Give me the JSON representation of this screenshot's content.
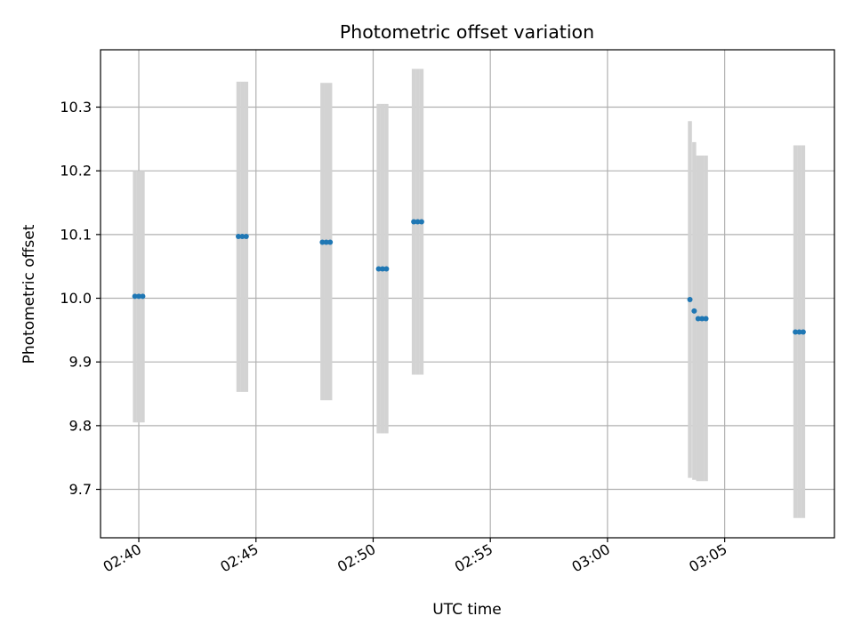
{
  "chart_data": {
    "type": "scatter",
    "title": "Photometric offset variation",
    "xlabel": "UTC time",
    "ylabel": "Photometric offset",
    "x_tick_labels": [
      "02:40",
      "02:45",
      "02:50",
      "02:55",
      "03:00",
      "03:05"
    ],
    "x_ticks": [
      "02:40",
      "02:45",
      "02:50",
      "02:55",
      "03:00",
      "03:05"
    ],
    "y_tick_labels": [
      "9.7",
      "9.8",
      "9.9",
      "10.0",
      "10.1",
      "10.2",
      "10.3"
    ],
    "y_ticks": [
      9.7,
      9.8,
      9.9,
      10.0,
      10.1,
      10.2,
      10.3
    ],
    "xlim": [
      "02:38:22",
      "03:09:41"
    ],
    "ylim": [
      9.624,
      10.39
    ],
    "grid": true,
    "errorbar_color": "#d3d3d3",
    "point_color": "#1f77b4",
    "series": [
      {
        "points": [
          {
            "x": "02:39:50",
            "y": 10.003,
            "ylow": 9.805,
            "yhigh": 10.2
          },
          {
            "x": "02:40:00",
            "y": 10.003,
            "ylow": 9.805,
            "yhigh": 10.2
          },
          {
            "x": "02:40:10",
            "y": 10.003,
            "ylow": 9.805,
            "yhigh": 10.2
          },
          {
            "x": "02:44:15",
            "y": 10.097,
            "ylow": 9.853,
            "yhigh": 10.34
          },
          {
            "x": "02:44:25",
            "y": 10.097,
            "ylow": 9.853,
            "yhigh": 10.34
          },
          {
            "x": "02:44:35",
            "y": 10.097,
            "ylow": 9.853,
            "yhigh": 10.34
          },
          {
            "x": "02:47:50",
            "y": 10.088,
            "ylow": 9.84,
            "yhigh": 10.338
          },
          {
            "x": "02:48:00",
            "y": 10.088,
            "ylow": 9.84,
            "yhigh": 10.338
          },
          {
            "x": "02:48:10",
            "y": 10.088,
            "ylow": 9.84,
            "yhigh": 10.338
          },
          {
            "x": "02:50:14",
            "y": 10.046,
            "ylow": 9.788,
            "yhigh": 10.305
          },
          {
            "x": "02:50:24",
            "y": 10.046,
            "ylow": 9.788,
            "yhigh": 10.305
          },
          {
            "x": "02:50:34",
            "y": 10.046,
            "ylow": 9.788,
            "yhigh": 10.305
          },
          {
            "x": "02:51:44",
            "y": 10.12,
            "ylow": 9.88,
            "yhigh": 10.36
          },
          {
            "x": "02:51:54",
            "y": 10.12,
            "ylow": 9.88,
            "yhigh": 10.36
          },
          {
            "x": "02:52:04",
            "y": 10.12,
            "ylow": 9.88,
            "yhigh": 10.36
          },
          {
            "x": "03:03:31",
            "y": 9.998,
            "ylow": 9.718,
            "yhigh": 10.278
          },
          {
            "x": "03:03:42",
            "y": 9.98,
            "ylow": 9.715,
            "yhigh": 10.245
          },
          {
            "x": "03:03:52",
            "y": 9.968,
            "ylow": 9.713,
            "yhigh": 10.224
          },
          {
            "x": "03:04:02",
            "y": 9.968,
            "ylow": 9.713,
            "yhigh": 10.224
          },
          {
            "x": "03:04:12",
            "y": 9.968,
            "ylow": 9.713,
            "yhigh": 10.224
          },
          {
            "x": "03:08:01",
            "y": 9.947,
            "ylow": 9.655,
            "yhigh": 10.24
          },
          {
            "x": "03:08:11",
            "y": 9.947,
            "ylow": 9.655,
            "yhigh": 10.24
          },
          {
            "x": "03:08:21",
            "y": 9.947,
            "ylow": 9.655,
            "yhigh": 10.24
          }
        ]
      }
    ]
  }
}
